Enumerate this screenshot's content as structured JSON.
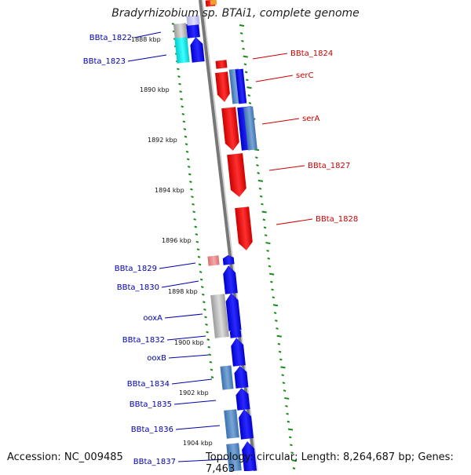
{
  "title": "Bradyrhizobium sp. BTAi1, complete genome",
  "footer": {
    "accession_label": "Accession:",
    "accession": "NC_009485",
    "topology_label": "Topology:",
    "topology": "circular",
    "length_label": "Length:",
    "length": "8,264,687 bp",
    "genes_label": "Genes:",
    "genes": "7,463"
  },
  "colors": {
    "backbone": "#888888",
    "forward_label": "#cc0000",
    "reverse_label": "#0000aa",
    "tick": "#1a8a1a"
  },
  "scale_labels": [
    "1888 kbp",
    "1890 kbp",
    "1892 kbp",
    "1894 kbp",
    "1896 kbp",
    "1898 kbp",
    "1900 kbp",
    "1902 kbp",
    "1904 kbp"
  ],
  "labels_right": [
    "BBta_1824",
    "serC",
    "serA",
    "BBta_1827",
    "BBta_1828"
  ],
  "labels_left": [
    "BBta_1822",
    "BBta_1823",
    "BBta_1829",
    "BBta_1830",
    "ooxA",
    "BBta_1832",
    "ooxB",
    "BBta_1834",
    "BBta_1835",
    "BBta_1836",
    "BBta_1837"
  ]
}
